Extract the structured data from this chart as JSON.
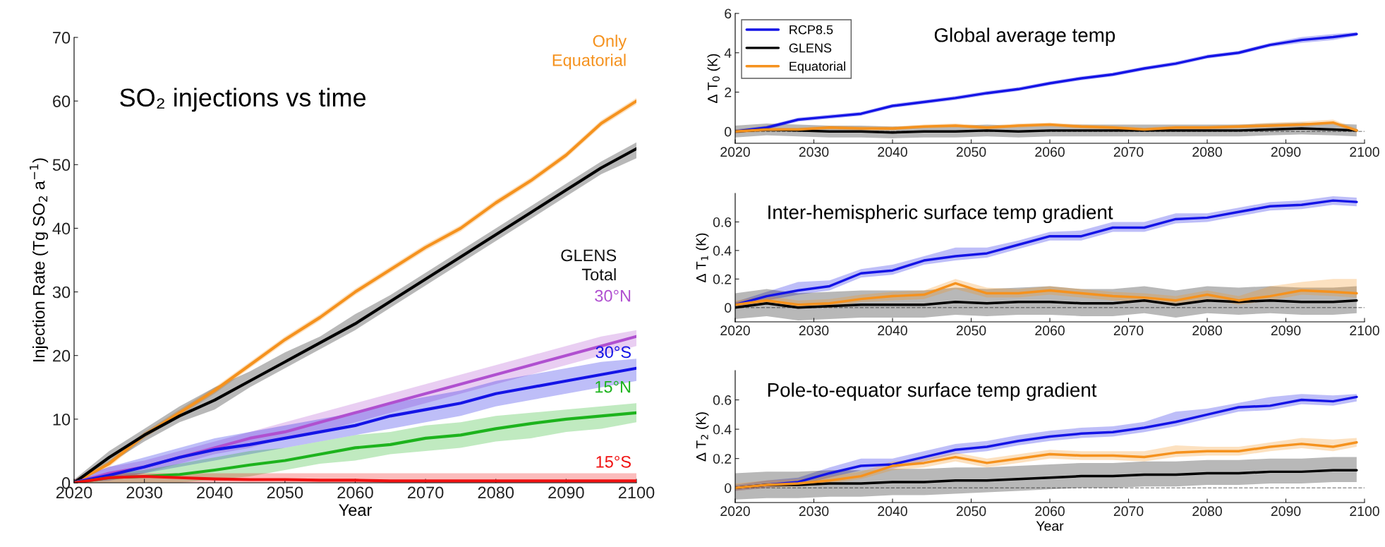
{
  "chart_data": [
    {
      "type": "line",
      "title": "SO₂ injections vs time",
      "xlabel": "Year",
      "ylabel": "Injection Rate (Tg SO$_{2}$ a$^{−1}$)",
      "x": [
        2020,
        2025,
        2030,
        2035,
        2040,
        2045,
        2050,
        2055,
        2060,
        2065,
        2070,
        2075,
        2080,
        2085,
        2090,
        2095,
        2100
      ],
      "xlim": [
        2020,
        2100
      ],
      "xticks": [
        2020,
        2030,
        2040,
        2050,
        2060,
        2070,
        2080,
        2090,
        2100
      ],
      "ylim": [
        0,
        70
      ],
      "yticks": [
        0,
        10,
        20,
        30,
        40,
        50,
        60,
        70
      ],
      "grid": false,
      "legend": false,
      "series": [
        {
          "name": "Only\nEquatorial",
          "color": "#f5921e",
          "values": [
            0,
            3,
            7.5,
            11,
            14.5,
            18.5,
            22.5,
            26,
            30,
            33.5,
            37,
            40,
            44,
            47.5,
            51.5,
            56.5,
            60
          ],
          "lower": [
            0,
            2.5,
            7,
            10.5,
            14,
            18,
            22,
            25.5,
            29.5,
            33,
            36.5,
            39.5,
            43.5,
            47,
            51,
            56,
            59.5
          ],
          "upper": [
            0.5,
            3.5,
            8,
            11.5,
            15,
            19,
            23,
            26.5,
            30.5,
            34,
            37.5,
            40.5,
            44.5,
            48,
            52,
            57,
            60.5
          ]
        },
        {
          "name": "GLENS\nTotal",
          "color": "#000000",
          "values": [
            0,
            4,
            7.5,
            10.5,
            13,
            16,
            19,
            22,
            25,
            28.5,
            32,
            35.5,
            39,
            42.5,
            46,
            49.5,
            52.5
          ],
          "lower": [
            0,
            3,
            6.5,
            9.5,
            11.5,
            15,
            18,
            21,
            24,
            27.5,
            31,
            34.5,
            38,
            41.5,
            45,
            48.5,
            51
          ],
          "upper": [
            0.5,
            5,
            8.5,
            12,
            15,
            17.5,
            20.5,
            23,
            26.5,
            29.5,
            33,
            36.5,
            40,
            43.5,
            47,
            50.5,
            53.5
          ]
        },
        {
          "name": "30°N",
          "color": "#b050d0",
          "values": [
            0,
            1.5,
            2.5,
            4,
            5.5,
            7,
            8,
            9.5,
            11,
            12.5,
            14,
            15.5,
            17,
            18.5,
            20,
            21.5,
            23
          ],
          "lower": [
            0,
            0.5,
            1.5,
            3,
            4.5,
            5.5,
            7,
            8,
            9.5,
            11,
            12.5,
            14,
            15.5,
            17,
            18.5,
            20,
            21.5
          ],
          "upper": [
            0.5,
            2.5,
            3.5,
            5,
            6.5,
            8,
            9.5,
            11,
            12.5,
            14,
            15.5,
            17,
            18.5,
            20,
            21.5,
            23,
            24
          ]
        },
        {
          "name": "30°S",
          "color": "#1414e6",
          "values": [
            0,
            1.2,
            2.5,
            4,
            5.2,
            6,
            7,
            8,
            9,
            10.5,
            11.5,
            12.5,
            14,
            15,
            16,
            17,
            18
          ],
          "lower": [
            0,
            0.3,
            1.5,
            2.5,
            3.5,
            4.5,
            5.5,
            6.5,
            7.5,
            8.5,
            9.5,
            10.5,
            12,
            13,
            14,
            15,
            16
          ],
          "upper": [
            0.5,
            2.5,
            4,
            5.5,
            7,
            8,
            9,
            10,
            11,
            12.5,
            13.5,
            14.5,
            16,
            17,
            18,
            19,
            19.5
          ]
        },
        {
          "name": "15°N",
          "color": "#1db31d",
          "values": [
            0,
            0.8,
            1,
            1.3,
            2,
            2.8,
            3.5,
            4.5,
            5.5,
            6,
            7,
            7.5,
            8.5,
            9.3,
            10,
            10.5,
            11
          ],
          "lower": [
            0,
            0,
            0,
            0,
            0.5,
            1,
            2,
            3,
            3.5,
            4.5,
            5,
            5.5,
            6.5,
            7,
            8,
            8.5,
            9.5
          ],
          "upper": [
            0.5,
            1.5,
            2,
            3,
            4,
            5,
            5.5,
            6.5,
            7.5,
            8,
            9,
            9.5,
            10.5,
            11,
            11.5,
            12,
            12.5
          ]
        },
        {
          "name": "15°S",
          "color": "#f01010",
          "values": [
            0,
            0.8,
            1,
            0.8,
            0.6,
            0.5,
            0.5,
            0.4,
            0.4,
            0.3,
            0.3,
            0.3,
            0.3,
            0.3,
            0.3,
            0.3,
            0.3
          ],
          "lower": [
            0,
            0,
            0,
            0,
            0,
            0,
            0,
            0,
            0,
            0,
            0,
            0,
            0,
            0,
            0,
            0,
            0
          ],
          "upper": [
            0.5,
            1.5,
            1.5,
            1.5,
            1.5,
            1.5,
            1.5,
            1.5,
            1.5,
            1.5,
            1.5,
            1.5,
            1.5,
            1.5,
            1.5,
            1.5,
            1.5
          ]
        }
      ]
    },
    {
      "type": "line",
      "title": "Global average temp",
      "ylabel": "Δ T$_{0}$ (K)",
      "x": [
        2020,
        2024,
        2028,
        2032,
        2036,
        2040,
        2044,
        2048,
        2052,
        2056,
        2060,
        2064,
        2068,
        2072,
        2076,
        2080,
        2084,
        2088,
        2092,
        2096,
        2099
      ],
      "xlim": [
        2020,
        2100
      ],
      "xticks": [
        2020,
        2030,
        2040,
        2050,
        2060,
        2070,
        2080,
        2090,
        2100
      ],
      "ylim": [
        -0.6,
        6
      ],
      "yticks": [
        0,
        2,
        4,
        6
      ],
      "grid": false,
      "legend": "top left",
      "ref_lines": [
        {
          "axis": "y",
          "value": 0,
          "color": "#999999",
          "line_style": "dashed"
        }
      ],
      "series": [
        {
          "name": "RCP8.5",
          "color": "#1414e6",
          "values": [
            0,
            0.2,
            0.6,
            0.75,
            0.9,
            1.3,
            1.5,
            1.7,
            1.95,
            2.15,
            2.45,
            2.7,
            2.9,
            3.2,
            3.45,
            3.8,
            4.0,
            4.4,
            4.65,
            4.8,
            4.95
          ],
          "lower": [
            -0.1,
            0.1,
            0.5,
            0.65,
            0.8,
            1.2,
            1.4,
            1.6,
            1.85,
            2.05,
            2.35,
            2.6,
            2.8,
            3.1,
            3.35,
            3.7,
            3.9,
            4.3,
            4.5,
            4.65,
            4.85
          ],
          "upper": [
            0.1,
            0.3,
            0.7,
            0.85,
            1.0,
            1.4,
            1.6,
            1.8,
            2.05,
            2.25,
            2.55,
            2.8,
            3.0,
            3.3,
            3.55,
            3.9,
            4.1,
            4.5,
            4.8,
            4.95,
            5.05
          ]
        },
        {
          "name": "GLENS",
          "color": "#000000",
          "values": [
            0,
            0.1,
            0.05,
            0,
            0,
            -0.05,
            0,
            0,
            0.05,
            0,
            0.05,
            0.05,
            0.05,
            0.05,
            0.05,
            0.05,
            0.05,
            0.1,
            0.15,
            0.1,
            0.05
          ],
          "lower": [
            -0.3,
            -0.2,
            -0.25,
            -0.3,
            -0.3,
            -0.35,
            -0.3,
            -0.3,
            -0.25,
            -0.3,
            -0.25,
            -0.25,
            -0.25,
            -0.25,
            -0.25,
            -0.25,
            -0.25,
            -0.2,
            -0.15,
            -0.2,
            -0.25
          ],
          "upper": [
            0.3,
            0.4,
            0.35,
            0.3,
            0.3,
            0.25,
            0.3,
            0.3,
            0.35,
            0.3,
            0.35,
            0.35,
            0.35,
            0.35,
            0.35,
            0.35,
            0.35,
            0.4,
            0.45,
            0.4,
            0.35
          ]
        },
        {
          "name": "Equatorial",
          "color": "#f5921e",
          "values": [
            0,
            0.1,
            0.1,
            0.2,
            0.15,
            0.15,
            0.25,
            0.3,
            0.2,
            0.3,
            0.35,
            0.25,
            0.2,
            0.1,
            0.2,
            0.2,
            0.25,
            0.3,
            0.35,
            0.45,
            0.05
          ],
          "lower": [
            -0.1,
            0,
            0,
            0.1,
            0.05,
            0.05,
            0.15,
            0.2,
            0.1,
            0.2,
            0.25,
            0.15,
            0.1,
            0,
            0.1,
            0.1,
            0.15,
            0.2,
            0.25,
            0.35,
            -0.05
          ],
          "upper": [
            0.1,
            0.2,
            0.2,
            0.3,
            0.25,
            0.25,
            0.35,
            0.4,
            0.3,
            0.4,
            0.45,
            0.35,
            0.3,
            0.2,
            0.3,
            0.3,
            0.35,
            0.45,
            0.5,
            0.6,
            0.15
          ]
        }
      ]
    },
    {
      "type": "line",
      "title": "Inter-hemispheric surface temp gradient",
      "ylabel": "Δ T$_{1}$ (K)",
      "x": [
        2020,
        2024,
        2028,
        2032,
        2036,
        2040,
        2044,
        2048,
        2052,
        2056,
        2060,
        2064,
        2068,
        2072,
        2076,
        2080,
        2084,
        2088,
        2092,
        2096,
        2099
      ],
      "xlim": [
        2020,
        2100
      ],
      "xticks": [
        2020,
        2030,
        2040,
        2050,
        2060,
        2070,
        2080,
        2090,
        2100
      ],
      "ylim": [
        -0.1,
        0.8
      ],
      "yticks": [
        0,
        0.2,
        0.4,
        0.6
      ],
      "grid": false,
      "legend": false,
      "ref_lines": [
        {
          "axis": "y",
          "value": 0,
          "color": "#999999",
          "line_style": "dashed"
        }
      ],
      "series": [
        {
          "color": "#1414e6",
          "values": [
            0.02,
            0.08,
            0.12,
            0.15,
            0.24,
            0.26,
            0.33,
            0.36,
            0.38,
            0.44,
            0.5,
            0.5,
            0.56,
            0.56,
            0.62,
            0.63,
            0.67,
            0.71,
            0.72,
            0.75,
            0.74
          ],
          "lower": [
            0,
            0.05,
            0.09,
            0.12,
            0.21,
            0.23,
            0.3,
            0.33,
            0.35,
            0.41,
            0.47,
            0.47,
            0.53,
            0.53,
            0.59,
            0.6,
            0.64,
            0.68,
            0.69,
            0.72,
            0.71
          ],
          "upper": [
            0.04,
            0.11,
            0.18,
            0.19,
            0.27,
            0.3,
            0.36,
            0.42,
            0.42,
            0.47,
            0.53,
            0.54,
            0.6,
            0.6,
            0.66,
            0.66,
            0.7,
            0.74,
            0.75,
            0.78,
            0.77
          ]
        },
        {
          "color": "#000000",
          "values": [
            0,
            0.03,
            0,
            0.01,
            0.02,
            0.02,
            0.02,
            0.04,
            0.03,
            0.04,
            0.04,
            0.03,
            0.03,
            0.05,
            0.02,
            0.05,
            0.04,
            0.05,
            0.04,
            0.04,
            0.05
          ],
          "lower": [
            -0.08,
            -0.06,
            -0.09,
            -0.08,
            -0.07,
            -0.07,
            -0.07,
            -0.05,
            -0.06,
            -0.05,
            -0.05,
            -0.06,
            -0.06,
            -0.04,
            -0.07,
            -0.04,
            -0.05,
            -0.04,
            -0.05,
            -0.05,
            -0.04
          ],
          "upper": [
            0.1,
            0.13,
            0.1,
            0.11,
            0.12,
            0.12,
            0.12,
            0.14,
            0.13,
            0.14,
            0.15,
            0.13,
            0.13,
            0.15,
            0.12,
            0.15,
            0.14,
            0.15,
            0.14,
            0.14,
            0.15
          ]
        },
        {
          "color": "#f5921e",
          "values": [
            0.02,
            0.05,
            0.02,
            0.03,
            0.06,
            0.08,
            0.09,
            0.17,
            0.1,
            0.1,
            0.12,
            0.1,
            0.08,
            0.07,
            0.05,
            0.09,
            0.05,
            0.08,
            0.12,
            0.11,
            0.1
          ],
          "lower": [
            0,
            0.03,
            0,
            0,
            0.04,
            0.05,
            0.06,
            0.13,
            0.07,
            0.07,
            0.09,
            0.07,
            0.05,
            0.04,
            0.02,
            0.06,
            0.02,
            0.05,
            0.09,
            0.08,
            0.07
          ],
          "upper": [
            0.05,
            0.08,
            0.05,
            0.06,
            0.09,
            0.11,
            0.12,
            0.2,
            0.14,
            0.13,
            0.15,
            0.13,
            0.11,
            0.1,
            0.08,
            0.12,
            0.08,
            0.15,
            0.18,
            0.2,
            0.2
          ]
        }
      ]
    },
    {
      "type": "line",
      "title": "Pole-to-equator surface temp gradient",
      "xlabel": "Year",
      "ylabel": "Δ T$_{2}$ (K)",
      "x": [
        2020,
        2024,
        2028,
        2032,
        2036,
        2040,
        2044,
        2048,
        2052,
        2056,
        2060,
        2064,
        2068,
        2072,
        2076,
        2080,
        2084,
        2088,
        2092,
        2096,
        2099
      ],
      "xlim": [
        2020,
        2100
      ],
      "xticks": [
        2020,
        2030,
        2040,
        2050,
        2060,
        2070,
        2080,
        2090,
        2100
      ],
      "ylim": [
        -0.1,
        0.8
      ],
      "yticks": [
        0,
        0.2,
        0.4,
        0.6
      ],
      "grid": false,
      "legend": false,
      "ref_lines": [
        {
          "axis": "y",
          "value": 0,
          "color": "#999999",
          "line_style": "dashed"
        }
      ],
      "series": [
        {
          "color": "#1414e6",
          "values": [
            0,
            0.02,
            0.04,
            0.1,
            0.15,
            0.16,
            0.21,
            0.26,
            0.28,
            0.32,
            0.35,
            0.37,
            0.38,
            0.41,
            0.45,
            0.5,
            0.55,
            0.56,
            0.6,
            0.59,
            0.62
          ],
          "lower": [
            -0.02,
            0,
            0.02,
            0.07,
            0.12,
            0.13,
            0.18,
            0.23,
            0.25,
            0.29,
            0.32,
            0.34,
            0.35,
            0.38,
            0.42,
            0.47,
            0.52,
            0.53,
            0.57,
            0.56,
            0.59
          ],
          "upper": [
            0.02,
            0.05,
            0.07,
            0.14,
            0.2,
            0.2,
            0.25,
            0.3,
            0.32,
            0.36,
            0.39,
            0.41,
            0.42,
            0.45,
            0.52,
            0.54,
            0.58,
            0.62,
            0.64,
            0.63,
            0.64
          ]
        },
        {
          "color": "#000000",
          "values": [
            0,
            0.02,
            0.02,
            0.03,
            0.03,
            0.04,
            0.04,
            0.05,
            0.05,
            0.06,
            0.07,
            0.08,
            0.08,
            0.09,
            0.09,
            0.1,
            0.1,
            0.11,
            0.11,
            0.12,
            0.12
          ],
          "lower": [
            -0.08,
            -0.07,
            -0.07,
            -0.06,
            -0.06,
            -0.05,
            -0.05,
            -0.04,
            -0.03,
            -0.02,
            -0.01,
            0,
            0,
            0.01,
            0.01,
            0.02,
            0.02,
            0.03,
            0.03,
            0.04,
            0.04
          ],
          "upper": [
            0.1,
            0.11,
            0.11,
            0.12,
            0.12,
            0.13,
            0.13,
            0.14,
            0.14,
            0.15,
            0.16,
            0.17,
            0.17,
            0.18,
            0.18,
            0.19,
            0.19,
            0.2,
            0.2,
            0.21,
            0.21
          ]
        },
        {
          "color": "#f5921e",
          "values": [
            0,
            0.02,
            0.03,
            0.05,
            0.08,
            0.15,
            0.17,
            0.21,
            0.17,
            0.2,
            0.23,
            0.22,
            0.22,
            0.21,
            0.24,
            0.25,
            0.25,
            0.28,
            0.3,
            0.28,
            0.31
          ],
          "lower": [
            -0.02,
            0,
            0.01,
            0.03,
            0.06,
            0.12,
            0.14,
            0.18,
            0.14,
            0.17,
            0.2,
            0.19,
            0.19,
            0.18,
            0.21,
            0.22,
            0.22,
            0.25,
            0.27,
            0.25,
            0.28
          ],
          "upper": [
            0.03,
            0.05,
            0.06,
            0.08,
            0.11,
            0.18,
            0.2,
            0.24,
            0.2,
            0.23,
            0.26,
            0.25,
            0.25,
            0.25,
            0.29,
            0.28,
            0.28,
            0.31,
            0.34,
            0.33,
            0.34
          ]
        }
      ]
    }
  ]
}
